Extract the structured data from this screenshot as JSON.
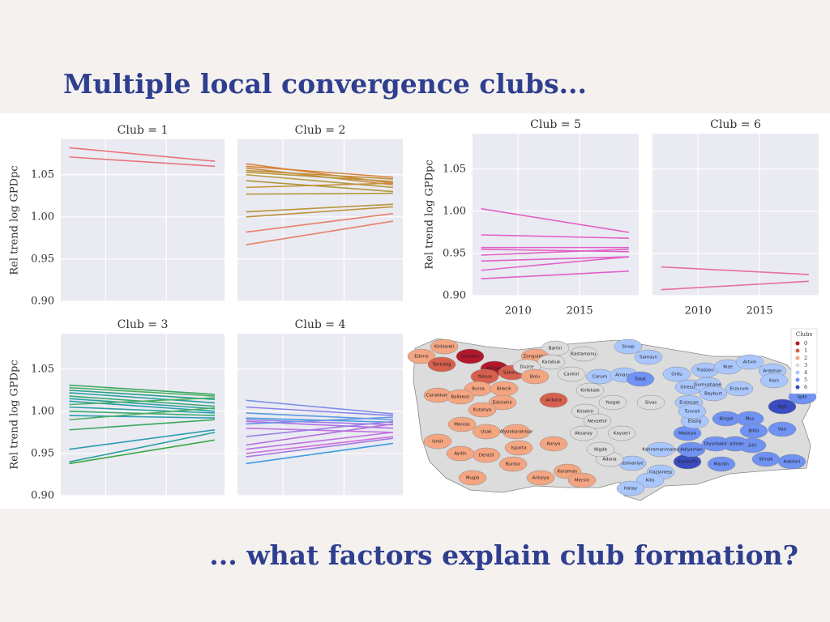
{
  "header": {
    "title": "Multiple local convergence clubs..."
  },
  "footer": {
    "text": "... what factors explain club formation?"
  },
  "chart_data": [
    {
      "type": "line",
      "title": "Club = 1",
      "ylabel": "Rel trend log GPDpc",
      "x": [
        2007,
        2019
      ],
      "xlim": [
        2006.3,
        2019.8
      ],
      "ylim": [
        0.9,
        1.092
      ],
      "xticks": [
        2010,
        2015
      ],
      "xtick_labels": false,
      "ytick_labels": true,
      "yticks": [
        {
          "value": 0.9,
          "label": "0.90"
        },
        {
          "value": 0.95,
          "label": "0.95"
        },
        {
          "value": 1,
          "label": "1.00"
        },
        {
          "value": 1.05,
          "label": "1.05"
        }
      ],
      "grid": true,
      "series": [
        {
          "color": "#e8747c",
          "values": [
            1.082,
            1.066
          ]
        },
        {
          "color": "#e8747c",
          "values": [
            1.071,
            1.06
          ]
        }
      ]
    },
    {
      "type": "line",
      "title": "Club = 2",
      "x": [
        2007,
        2019
      ],
      "xlim": [
        2006.3,
        2019.8
      ],
      "ylim": [
        0.9,
        1.092
      ],
      "xticks": [
        2010,
        2015
      ],
      "xtick_labels": false,
      "ytick_labels": false,
      "yticks": [
        0.9,
        0.95,
        1,
        1.05
      ],
      "grid": true,
      "series": [
        {
          "color": "#d8843a",
          "values": [
            1.063,
            1.04
          ]
        },
        {
          "color": "#d8843a",
          "values": [
            1.06,
            1.047
          ]
        },
        {
          "color": "#c88a38",
          "values": [
            1.058,
            1.038
          ]
        },
        {
          "color": "#c0903a",
          "values": [
            1.055,
            1.045
          ]
        },
        {
          "color": "#b8963a",
          "values": [
            1.053,
            1.042
          ]
        },
        {
          "color": "#b8963a",
          "values": [
            1.05,
            1.035
          ]
        },
        {
          "color": "#b0983c",
          "values": [
            1.043,
            1.03
          ]
        },
        {
          "color": "#c8903a",
          "values": [
            1.035,
            1.04
          ]
        },
        {
          "color": "#b0983c",
          "values": [
            1.027,
            1.028
          ]
        },
        {
          "color": "#b8963a",
          "values": [
            1.006,
            1.015
          ]
        },
        {
          "color": "#c0903a",
          "values": [
            1.0,
            1.012
          ]
        },
        {
          "color": "#e8806a",
          "values": [
            0.982,
            1.004
          ]
        },
        {
          "color": "#e8806a",
          "values": [
            0.967,
            0.995
          ]
        }
      ]
    },
    {
      "type": "line",
      "title": "Club = 3",
      "ylabel": "Rel trend log GPDpc",
      "x": [
        2007,
        2019
      ],
      "xlim": [
        2006.3,
        2019.8
      ],
      "ylim": [
        0.9,
        1.092
      ],
      "xticks": [
        2010,
        2015
      ],
      "xtick_labels": false,
      "ytick_labels": true,
      "yticks": [
        {
          "value": 0.9,
          "label": "0.90"
        },
        {
          "value": 0.95,
          "label": "0.95"
        },
        {
          "value": 1,
          "label": "1.00"
        },
        {
          "value": 1.05,
          "label": "1.05"
        }
      ],
      "grid": true,
      "series": [
        {
          "color": "#3aa860",
          "values": [
            1.031,
            1.02
          ]
        },
        {
          "color": "#4bb060",
          "values": [
            1.028,
            1.018
          ]
        },
        {
          "color": "#2aa08a",
          "values": [
            1.025,
            1.014
          ]
        },
        {
          "color": "#2aa0a0",
          "values": [
            1.022,
            1.01
          ]
        },
        {
          "color": "#3aa870",
          "values": [
            1.018,
            1.006
          ]
        },
        {
          "color": "#2aa0a0",
          "values": [
            1.015,
            1.003
          ]
        },
        {
          "color": "#2a9cb0",
          "values": [
            1.012,
            1.0
          ]
        },
        {
          "color": "#4bb060",
          "values": [
            1.008,
            1.016
          ]
        },
        {
          "color": "#2aa0a0",
          "values": [
            1.005,
            0.998
          ]
        },
        {
          "color": "#3aa870",
          "values": [
            1.0,
            0.995
          ]
        },
        {
          "color": "#2a9cb0",
          "values": [
            0.995,
            0.992
          ]
        },
        {
          "color": "#4bb060",
          "values": [
            0.99,
            1.004
          ]
        },
        {
          "color": "#3aa860",
          "values": [
            0.978,
            0.99
          ]
        },
        {
          "color": "#2a9cb0",
          "values": [
            0.955,
            0.978
          ]
        },
        {
          "color": "#2aa0a0",
          "values": [
            0.94,
            0.975
          ]
        },
        {
          "color": "#3aa840",
          "values": [
            0.938,
            0.966
          ]
        }
      ]
    },
    {
      "type": "line",
      "title": "Club = 4",
      "x": [
        2007,
        2019
      ],
      "xlim": [
        2006.3,
        2019.8
      ],
      "ylim": [
        0.9,
        1.092
      ],
      "xticks": [
        2010,
        2015
      ],
      "xtick_labels": false,
      "ytick_labels": false,
      "yticks": [
        0.9,
        0.95,
        1,
        1.05
      ],
      "grid": true,
      "series": [
        {
          "color": "#7a8ee8",
          "values": [
            1.013,
            0.997
          ]
        },
        {
          "color": "#8a84e8",
          "values": [
            1.005,
            0.995
          ]
        },
        {
          "color": "#5a9ae0",
          "values": [
            0.998,
            0.99
          ]
        },
        {
          "color": "#4aa0e0",
          "values": [
            0.992,
            0.987
          ]
        },
        {
          "color": "#a27ae8",
          "values": [
            0.99,
            0.984
          ]
        },
        {
          "color": "#b070e0",
          "values": [
            0.988,
            0.98
          ]
        },
        {
          "color": "#6a94e8",
          "values": [
            0.985,
            0.993
          ]
        },
        {
          "color": "#c070e0",
          "values": [
            0.98,
            0.975
          ]
        },
        {
          "color": "#9a80e8",
          "values": [
            0.97,
            0.988
          ]
        },
        {
          "color": "#b070e0",
          "values": [
            0.96,
            0.985
          ]
        },
        {
          "color": "#c070e0",
          "values": [
            0.955,
            0.975
          ]
        },
        {
          "color": "#d070d8",
          "values": [
            0.95,
            0.97
          ]
        },
        {
          "color": "#a27ae8",
          "values": [
            0.946,
            0.968
          ]
        },
        {
          "color": "#3a9ce0",
          "values": [
            0.938,
            0.962
          ]
        }
      ]
    },
    {
      "type": "line",
      "title": "Club = 5",
      "ylabel": "Rel trend log GPDpc",
      "x": [
        2007,
        2019
      ],
      "xlim": [
        2006.3,
        2019.8
      ],
      "ylim": [
        0.9,
        1.092
      ],
      "xticks": [
        2010,
        2015
      ],
      "xtick_labels": true,
      "ytick_labels": true,
      "yticks": [
        {
          "value": 0.9,
          "label": "0.90"
        },
        {
          "value": 0.95,
          "label": "0.95"
        },
        {
          "value": 1,
          "label": "1.00"
        },
        {
          "value": 1.05,
          "label": "1.05"
        }
      ],
      "grid": true,
      "series": [
        {
          "color": "#e060c8",
          "values": [
            1.003,
            0.975
          ]
        },
        {
          "color": "#e060c8",
          "values": [
            0.972,
            0.968
          ]
        },
        {
          "color": "#e060c8",
          "values": [
            0.957,
            0.957
          ]
        },
        {
          "color": "#e060c8",
          "values": [
            0.955,
            0.952
          ]
        },
        {
          "color": "#e060c8",
          "values": [
            0.948,
            0.955
          ]
        },
        {
          "color": "#e060c8",
          "values": [
            0.941,
            0.946
          ]
        },
        {
          "color": "#e060c8",
          "values": [
            0.93,
            0.946
          ]
        },
        {
          "color": "#e060c8",
          "values": [
            0.92,
            0.929
          ]
        }
      ]
    },
    {
      "type": "line",
      "title": "Club = 6",
      "x": [
        2007,
        2019
      ],
      "xlim": [
        2006.3,
        2019.8
      ],
      "ylim": [
        0.9,
        1.092
      ],
      "xticks": [
        2010,
        2015
      ],
      "xtick_labels": true,
      "ytick_labels": false,
      "yticks": [
        0.9,
        0.95,
        1,
        1.05
      ],
      "grid": true,
      "series": [
        {
          "color": "#e8709a",
          "values": [
            0.934,
            0.925
          ]
        },
        {
          "color": "#e8709a",
          "values": [
            0.907,
            0.917
          ]
        }
      ]
    }
  ],
  "map": {
    "legend_title": "Clubs",
    "legend": [
      "0",
      "1",
      "2",
      "3",
      "4",
      "5",
      "6"
    ],
    "colors": [
      "#b2182b",
      "#d6604d",
      "#f4a582",
      "#dcdcdc",
      "#aac7fd",
      "#6f92f3",
      "#3b4cc0"
    ],
    "provinces": [
      {
        "name": "Kirklareli",
        "club": 2
      },
      {
        "name": "Edirne",
        "club": 2
      },
      {
        "name": "Tekirdag",
        "club": 1
      },
      {
        "name": "Istanbul",
        "club": 0
      },
      {
        "name": "Kocaeli",
        "club": 0
      },
      {
        "name": "Sakarya",
        "club": 1
      },
      {
        "name": "Yalova",
        "club": 1
      },
      {
        "name": "Bartin",
        "club": 3
      },
      {
        "name": "Zonguldak",
        "club": 2
      },
      {
        "name": "Karabuk",
        "club": 3
      },
      {
        "name": "Kastamonu",
        "club": 3
      },
      {
        "name": "Sinop",
        "club": 4
      },
      {
        "name": "Samsun",
        "club": 4
      },
      {
        "name": "Duzce",
        "club": 3
      },
      {
        "name": "Bolu",
        "club": 2
      },
      {
        "name": "Cankiri",
        "club": 3
      },
      {
        "name": "Bursa",
        "club": 2
      },
      {
        "name": "Bilecik",
        "club": 2
      },
      {
        "name": "Canakkale",
        "club": 2
      },
      {
        "name": "Balikesir",
        "club": 2
      },
      {
        "name": "Eskisehir",
        "club": 2
      },
      {
        "name": "Ankara",
        "club": 1
      },
      {
        "name": "Kirikkale",
        "club": 3
      },
      {
        "name": "Corum",
        "club": 4
      },
      {
        "name": "Amasya",
        "club": 4
      },
      {
        "name": "Tokat",
        "club": 5
      },
      {
        "name": "Ordu",
        "club": 4
      },
      {
        "name": "Giresun",
        "club": 4
      },
      {
        "name": "Trabzon",
        "club": 4
      },
      {
        "name": "Rize",
        "club": 4
      },
      {
        "name": "Artvin",
        "club": 4
      },
      {
        "name": "Ardahan",
        "club": 4
      },
      {
        "name": "Kars",
        "club": 4
      },
      {
        "name": "Gumushane",
        "club": 4
      },
      {
        "name": "Bayburt",
        "club": 4
      },
      {
        "name": "Erzurum",
        "club": 4
      },
      {
        "name": "Erzincan",
        "club": 4
      },
      {
        "name": "Sivas",
        "club": 3
      },
      {
        "name": "Yozgat",
        "club": 3
      },
      {
        "name": "Kirsehir",
        "club": 3
      },
      {
        "name": "Nevsehir",
        "club": 3
      },
      {
        "name": "Kutahya",
        "club": 2
      },
      {
        "name": "Manisa",
        "club": 2
      },
      {
        "name": "Usak",
        "club": 2
      },
      {
        "name": "Afyonkarahisar",
        "club": 2
      },
      {
        "name": "Aksaray",
        "club": 3
      },
      {
        "name": "Kayseri",
        "club": 3
      },
      {
        "name": "Malatya",
        "club": 5
      },
      {
        "name": "Elazig",
        "club": 4
      },
      {
        "name": "Tunceli",
        "club": 4
      },
      {
        "name": "Bingol",
        "club": 5
      },
      {
        "name": "Mus",
        "club": 5
      },
      {
        "name": "Agri",
        "club": 6
      },
      {
        "name": "Igdir",
        "club": 5
      },
      {
        "name": "Van",
        "club": 5
      },
      {
        "name": "Bitlis",
        "club": 5
      },
      {
        "name": "Siirt",
        "club": 5
      },
      {
        "name": "Batman",
        "club": 5
      },
      {
        "name": "Diyarbakir",
        "club": 5
      },
      {
        "name": "Sirnak",
        "club": 5
      },
      {
        "name": "Hakkari",
        "club": 5
      },
      {
        "name": "Mardin",
        "club": 5
      },
      {
        "name": "Sanliurfa",
        "club": 6
      },
      {
        "name": "Adiyaman",
        "club": 5
      },
      {
        "name": "Kahramanmaras",
        "club": 4
      },
      {
        "name": "Gaziantep",
        "club": 4
      },
      {
        "name": "Kilis",
        "club": 4
      },
      {
        "name": "Osmaniye",
        "club": 4
      },
      {
        "name": "Adana",
        "club": 3
      },
      {
        "name": "Hatay",
        "club": 4
      },
      {
        "name": "Nigde",
        "club": 3
      },
      {
        "name": "Konya",
        "club": 2
      },
      {
        "name": "Karaman",
        "club": 2
      },
      {
        "name": "Mersin",
        "club": 2
      },
      {
        "name": "Antalya",
        "club": 2
      },
      {
        "name": "Isparta",
        "club": 2
      },
      {
        "name": "Burdur",
        "club": 2
      },
      {
        "name": "Denizli",
        "club": 2
      },
      {
        "name": "Aydin",
        "club": 2
      },
      {
        "name": "Izmir",
        "club": 2
      },
      {
        "name": "Mugla",
        "club": 2
      }
    ]
  }
}
